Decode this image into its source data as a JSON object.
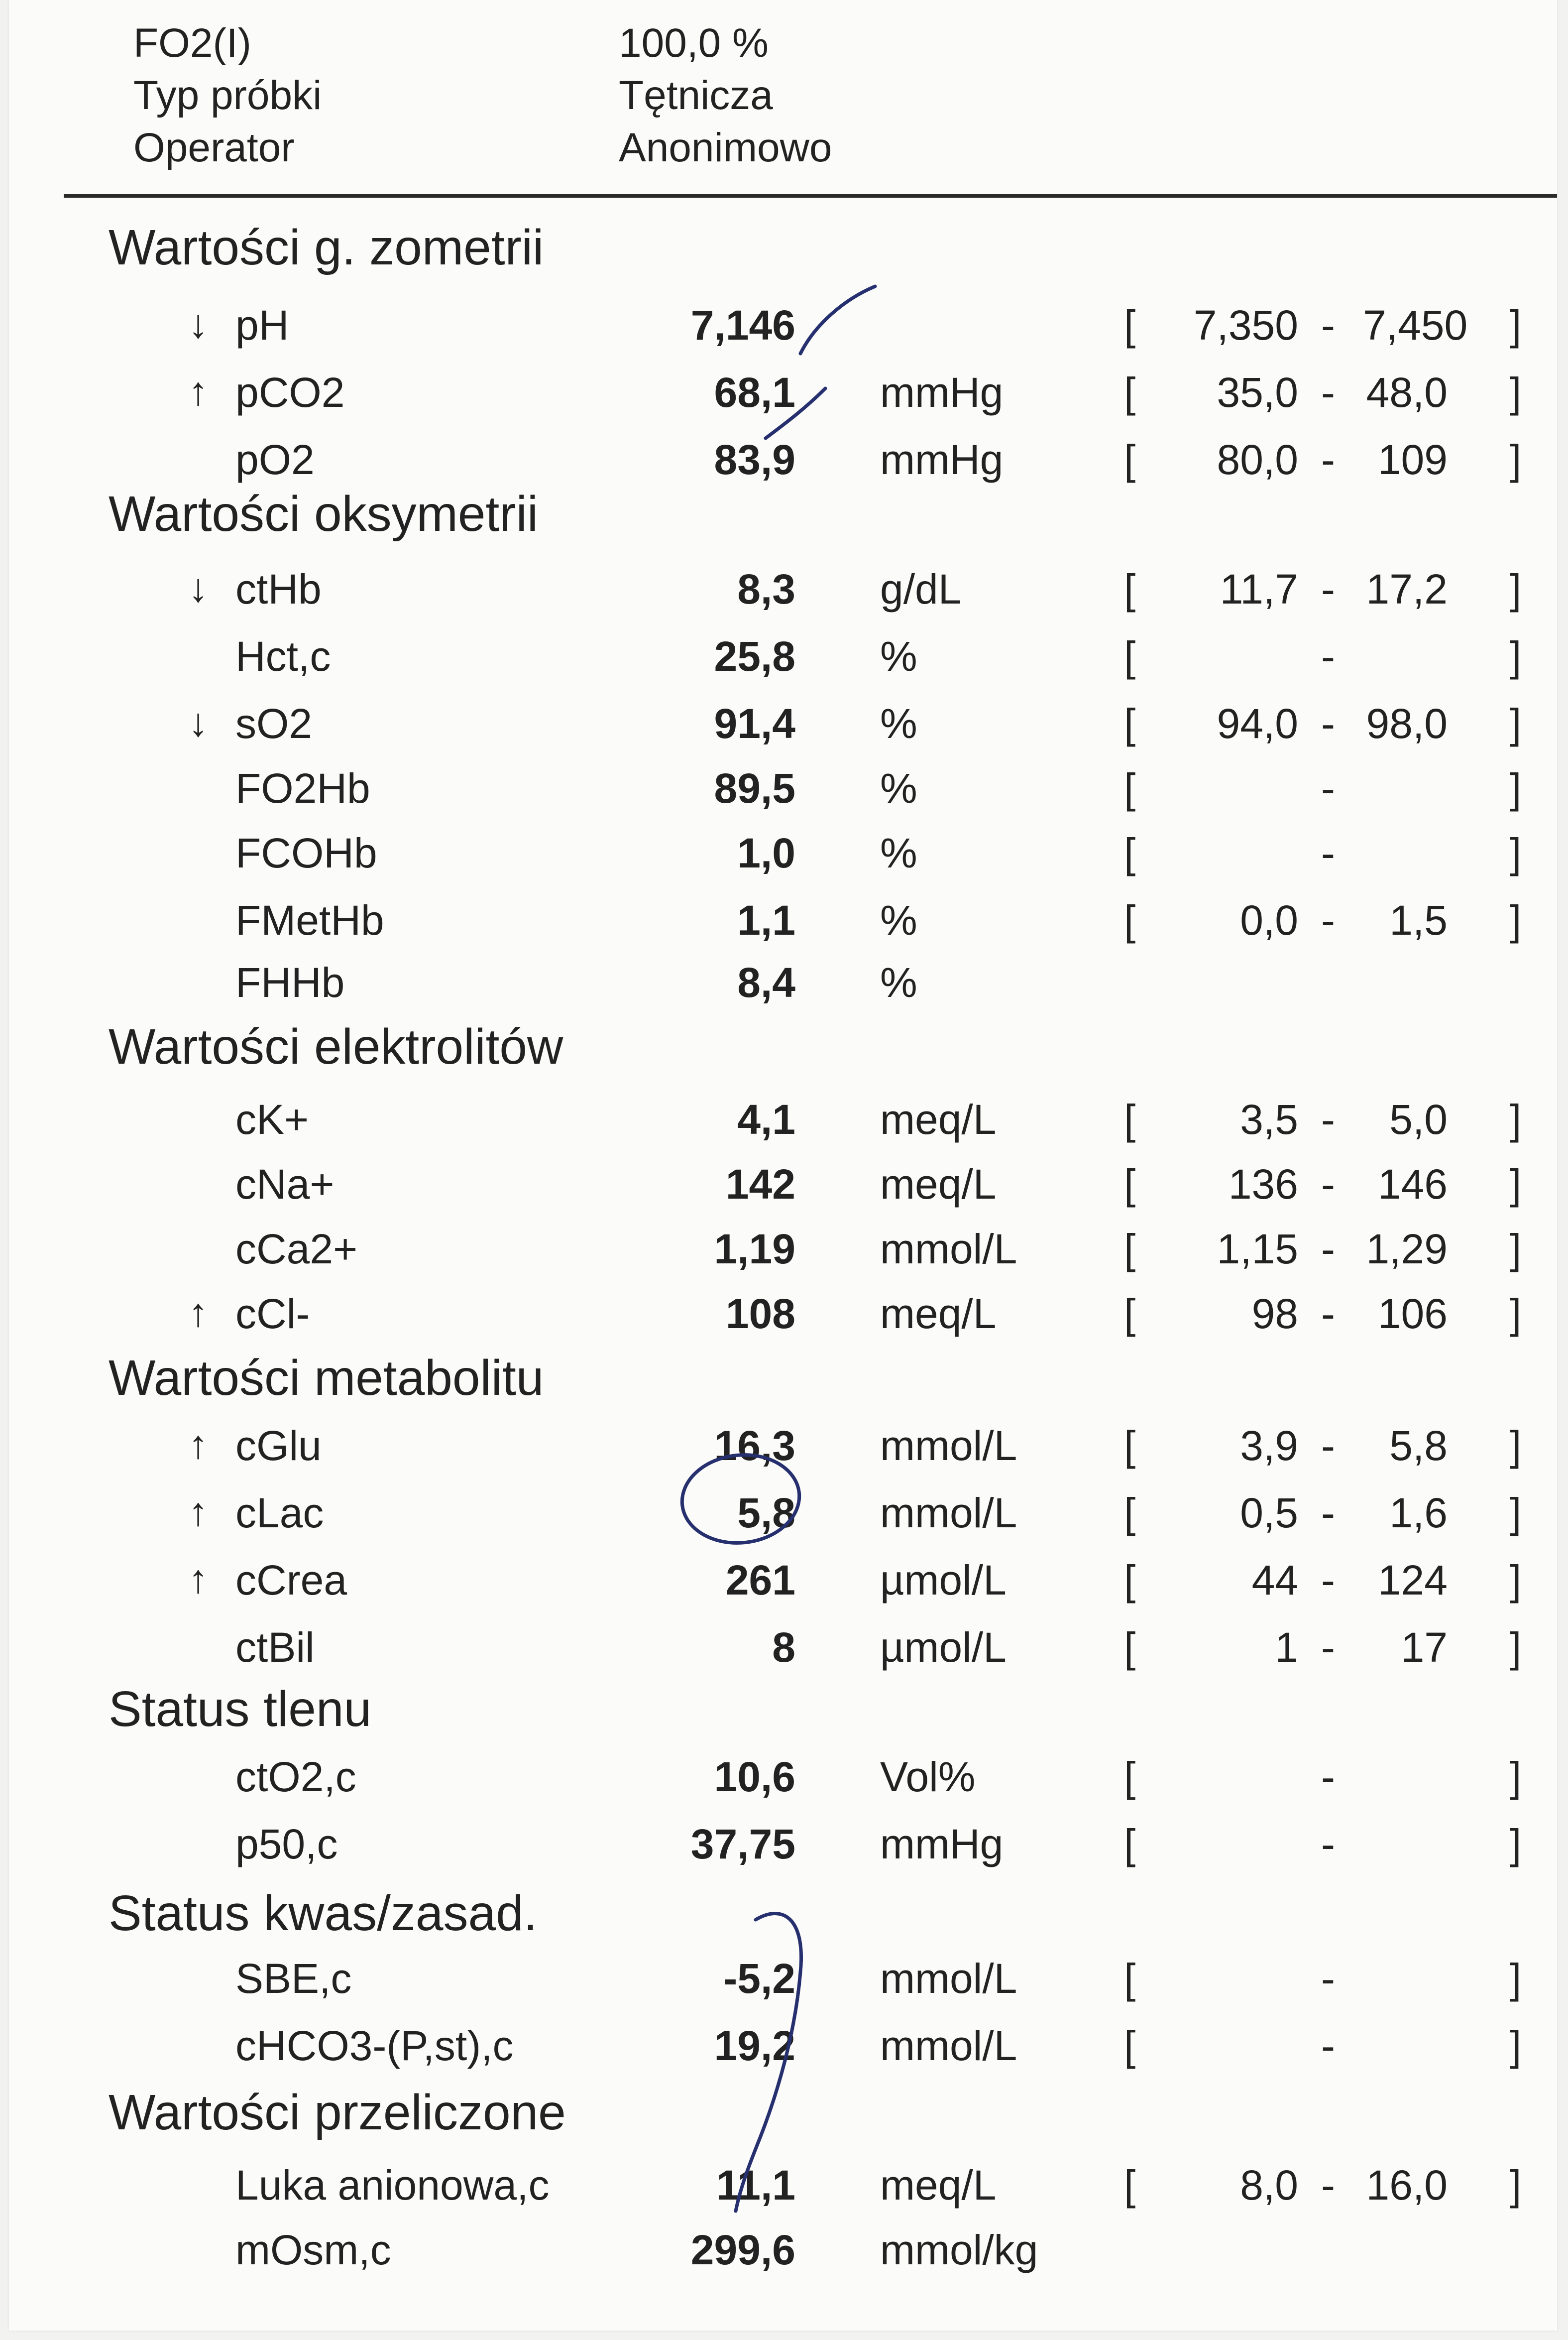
{
  "header": {
    "rows": [
      {
        "label": "FO2(I)",
        "value": "100,0 %"
      },
      {
        "label": "Typ próbki",
        "value": "Tętnicza"
      },
      {
        "label": "Operator",
        "value": "Anonimowo"
      }
    ]
  },
  "sections": [
    {
      "title": "Wartości g. zometrii",
      "rows": [
        {
          "flag": "↓",
          "name": "pH",
          "value": "7,146",
          "unit": "",
          "bracket": true,
          "low": "7,350",
          "high": "7,450"
        },
        {
          "flag": "↑",
          "name": "pCO2",
          "value": "68,1",
          "unit": "mmHg",
          "bracket": true,
          "low": "35,0",
          "high": "48,0"
        },
        {
          "flag": "",
          "name": "pO2",
          "value": "83,9",
          "unit": "mmHg",
          "bracket": true,
          "low": "80,0",
          "high": "109"
        }
      ]
    },
    {
      "title": "Wartości oksymetrii",
      "rows": [
        {
          "flag": "↓",
          "name": "ctHb",
          "value": "8,3",
          "unit": "g/dL",
          "bracket": true,
          "low": "11,7",
          "high": "17,2"
        },
        {
          "flag": "",
          "name": "Hct,c",
          "value": "25,8",
          "unit": "%",
          "bracket": true,
          "low": "",
          "high": ""
        },
        {
          "flag": "↓",
          "name": "sO2",
          "value": "91,4",
          "unit": "%",
          "bracket": true,
          "low": "94,0",
          "high": "98,0"
        },
        {
          "flag": "",
          "name": "FO2Hb",
          "value": "89,5",
          "unit": "%",
          "bracket": true,
          "low": "",
          "high": ""
        },
        {
          "flag": "",
          "name": "FCOHb",
          "value": "1,0",
          "unit": "%",
          "bracket": true,
          "low": "",
          "high": ""
        },
        {
          "flag": "",
          "name": "FMetHb",
          "value": "1,1",
          "unit": "%",
          "bracket": true,
          "low": "0,0",
          "high": "1,5"
        },
        {
          "flag": "",
          "name": "FHHb",
          "value": "8,4",
          "unit": "%",
          "bracket": false,
          "low": "",
          "high": ""
        }
      ]
    },
    {
      "title": "Wartości elektrolitów",
      "rows": [
        {
          "flag": "",
          "name": "cK+",
          "value": "4,1",
          "unit": "meq/L",
          "bracket": true,
          "low": "3,5",
          "high": "5,0"
        },
        {
          "flag": "",
          "name": "cNa+",
          "value": "142",
          "unit": "meq/L",
          "bracket": true,
          "low": "136",
          "high": "146"
        },
        {
          "flag": "",
          "name": "cCa2+",
          "value": "1,19",
          "unit": "mmol/L",
          "bracket": true,
          "low": "1,15",
          "high": "1,29"
        },
        {
          "flag": "↑",
          "name": "cCl-",
          "value": "108",
          "unit": "meq/L",
          "bracket": true,
          "low": "98",
          "high": "106"
        }
      ]
    },
    {
      "title": "Wartości metabolitu",
      "rows": [
        {
          "flag": "↑",
          "name": "cGlu",
          "value": "16,3",
          "unit": "mmol/L",
          "bracket": true,
          "low": "3,9",
          "high": "5,8"
        },
        {
          "flag": "↑",
          "name": "cLac",
          "value": "5,8",
          "unit": "mmol/L",
          "bracket": true,
          "low": "0,5",
          "high": "1,6"
        },
        {
          "flag": "↑",
          "name": "cCrea",
          "value": "261",
          "unit": "µmol/L",
          "bracket": true,
          "low": "44",
          "high": "124"
        },
        {
          "flag": "",
          "name": "ctBil",
          "value": "8",
          "unit": "µmol/L",
          "bracket": true,
          "low": "1",
          "high": "17"
        }
      ]
    },
    {
      "title": "Status tlenu",
      "rows": [
        {
          "flag": "",
          "name": "ctO2,c",
          "value": "10,6",
          "unit": "Vol%",
          "bracket": true,
          "low": "",
          "high": ""
        },
        {
          "flag": "",
          "name": "p50,c",
          "value": "37,75",
          "unit": "mmHg",
          "bracket": true,
          "low": "",
          "high": ""
        }
      ]
    },
    {
      "title": "Status kwas/zasad.",
      "rows": [
        {
          "flag": "",
          "name": "SBE,c",
          "value": "-5,2",
          "unit": "mmol/L",
          "bracket": true,
          "low": "",
          "high": ""
        },
        {
          "flag": "",
          "name": "cHCO3-(P,st),c",
          "value": "19,2",
          "unit": "mmol/L",
          "bracket": true,
          "low": "",
          "high": ""
        }
      ]
    },
    {
      "title": "Wartości przeliczone",
      "rows": [
        {
          "flag": "",
          "name": "Luka anionowa,c",
          "value": "11,1",
          "unit": "meq/L",
          "bracket": true,
          "low": "8,0",
          "high": "16,0"
        },
        {
          "flag": "",
          "name": "mOsm,c",
          "value": "299,6",
          "unit": "mmol/kg",
          "bracket": false,
          "low": "",
          "high": ""
        }
      ]
    }
  ],
  "range_glyphs": {
    "open": "[",
    "close": "]",
    "dash": "-"
  },
  "colors": {
    "ink": "#222222",
    "pen": "#27306f",
    "paper": "#fbfbfa"
  }
}
